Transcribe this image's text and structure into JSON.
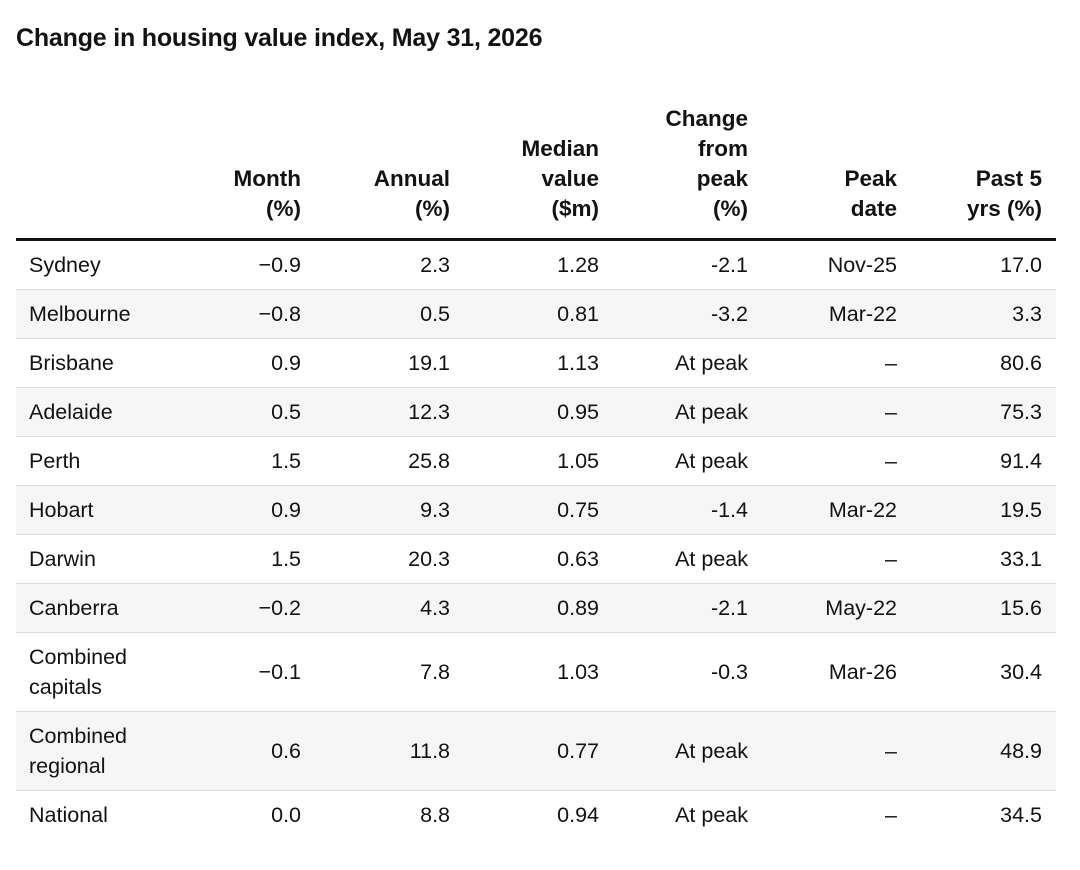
{
  "title": "Change in housing value index, May 31, 2026",
  "chart_data": {
    "type": "table",
    "title": "Change in housing value index, May 31, 2026",
    "columns": [
      {
        "key": "region",
        "header": ""
      },
      {
        "key": "month",
        "header": [
          "Month",
          "(%)"
        ]
      },
      {
        "key": "annual",
        "header": [
          "Annual",
          "(%)"
        ]
      },
      {
        "key": "median",
        "header": [
          "Median",
          "value",
          "($m)"
        ]
      },
      {
        "key": "from_peak",
        "header": [
          "Change",
          "from",
          "peak",
          "(%)"
        ]
      },
      {
        "key": "peak_date",
        "header": [
          "Peak",
          "date"
        ]
      },
      {
        "key": "past5",
        "header": [
          "Past 5",
          "yrs (%)"
        ]
      }
    ],
    "rows": [
      {
        "region": "Sydney",
        "month": "−0.9",
        "annual": "2.3",
        "median": "1.28",
        "from_peak": "-2.1",
        "peak_date": "Nov-25",
        "past5": "17.0"
      },
      {
        "region": "Melbourne",
        "month": "−0.8",
        "annual": "0.5",
        "median": "0.81",
        "from_peak": "-3.2",
        "peak_date": "Mar-22",
        "past5": "3.3"
      },
      {
        "region": "Brisbane",
        "month": "0.9",
        "annual": "19.1",
        "median": "1.13",
        "from_peak": "At peak",
        "peak_date": "–",
        "past5": "80.6"
      },
      {
        "region": "Adelaide",
        "month": "0.5",
        "annual": "12.3",
        "median": "0.95",
        "from_peak": "At peak",
        "peak_date": "–",
        "past5": "75.3"
      },
      {
        "region": "Perth",
        "month": "1.5",
        "annual": "25.8",
        "median": "1.05",
        "from_peak": "At peak",
        "peak_date": "–",
        "past5": "91.4"
      },
      {
        "region": "Hobart",
        "month": "0.9",
        "annual": "9.3",
        "median": "0.75",
        "from_peak": "-1.4",
        "peak_date": "Mar-22",
        "past5": "19.5"
      },
      {
        "region": "Darwin",
        "month": "1.5",
        "annual": "20.3",
        "median": "0.63",
        "from_peak": "At peak",
        "peak_date": "–",
        "past5": "33.1"
      },
      {
        "region": "Canberra",
        "month": "−0.2",
        "annual": "4.3",
        "median": "0.89",
        "from_peak": "-2.1",
        "peak_date": "May-22",
        "past5": "15.6"
      },
      {
        "region": "Combined capitals",
        "month": "−0.1",
        "annual": "7.8",
        "median": "1.03",
        "from_peak": "-0.3",
        "peak_date": "Mar-26",
        "past5": "30.4"
      },
      {
        "region": "Combined regional",
        "month": "0.6",
        "annual": "11.8",
        "median": "0.77",
        "from_peak": "At peak",
        "peak_date": "–",
        "past5": "48.9"
      },
      {
        "region": "National",
        "month": "0.0",
        "annual": "8.8",
        "median": "0.94",
        "from_peak": "At peak",
        "peak_date": "–",
        "past5": "34.5"
      }
    ]
  }
}
